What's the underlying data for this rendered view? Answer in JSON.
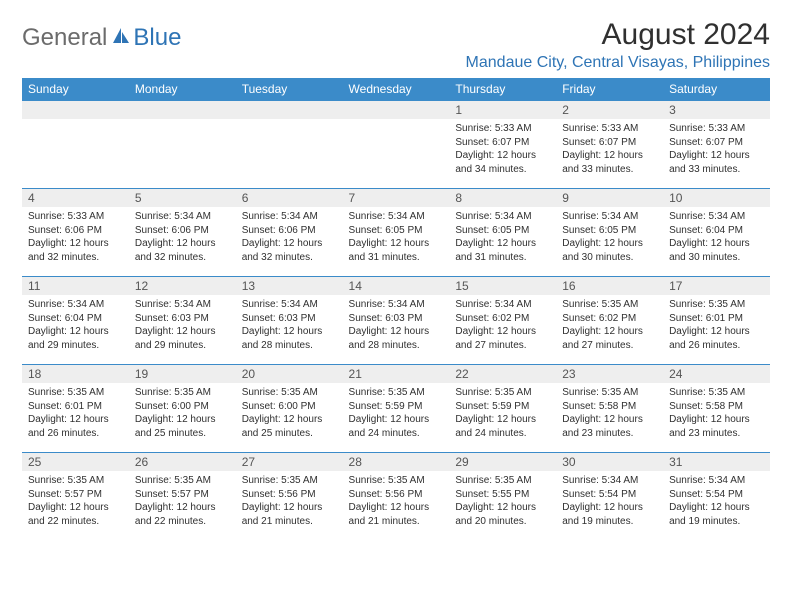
{
  "logo": {
    "general": "General",
    "blue": "Blue"
  },
  "title": "August 2024",
  "location": "Mandaue City, Central Visayas, Philippines",
  "colors": {
    "header_bg": "#3b8bc9",
    "header_text": "#ffffff",
    "daynum_bg": "#eeeeee",
    "accent": "#2e74b5",
    "text": "#303030"
  },
  "day_headers": [
    "Sunday",
    "Monday",
    "Tuesday",
    "Wednesday",
    "Thursday",
    "Friday",
    "Saturday"
  ],
  "weeks": [
    [
      null,
      null,
      null,
      null,
      {
        "n": "1",
        "sr": "5:33 AM",
        "ss": "6:07 PM",
        "dl": "12 hours and 34 minutes."
      },
      {
        "n": "2",
        "sr": "5:33 AM",
        "ss": "6:07 PM",
        "dl": "12 hours and 33 minutes."
      },
      {
        "n": "3",
        "sr": "5:33 AM",
        "ss": "6:07 PM",
        "dl": "12 hours and 33 minutes."
      }
    ],
    [
      {
        "n": "4",
        "sr": "5:33 AM",
        "ss": "6:06 PM",
        "dl": "12 hours and 32 minutes."
      },
      {
        "n": "5",
        "sr": "5:34 AM",
        "ss": "6:06 PM",
        "dl": "12 hours and 32 minutes."
      },
      {
        "n": "6",
        "sr": "5:34 AM",
        "ss": "6:06 PM",
        "dl": "12 hours and 32 minutes."
      },
      {
        "n": "7",
        "sr": "5:34 AM",
        "ss": "6:05 PM",
        "dl": "12 hours and 31 minutes."
      },
      {
        "n": "8",
        "sr": "5:34 AM",
        "ss": "6:05 PM",
        "dl": "12 hours and 31 minutes."
      },
      {
        "n": "9",
        "sr": "5:34 AM",
        "ss": "6:05 PM",
        "dl": "12 hours and 30 minutes."
      },
      {
        "n": "10",
        "sr": "5:34 AM",
        "ss": "6:04 PM",
        "dl": "12 hours and 30 minutes."
      }
    ],
    [
      {
        "n": "11",
        "sr": "5:34 AM",
        "ss": "6:04 PM",
        "dl": "12 hours and 29 minutes."
      },
      {
        "n": "12",
        "sr": "5:34 AM",
        "ss": "6:03 PM",
        "dl": "12 hours and 29 minutes."
      },
      {
        "n": "13",
        "sr": "5:34 AM",
        "ss": "6:03 PM",
        "dl": "12 hours and 28 minutes."
      },
      {
        "n": "14",
        "sr": "5:34 AM",
        "ss": "6:03 PM",
        "dl": "12 hours and 28 minutes."
      },
      {
        "n": "15",
        "sr": "5:34 AM",
        "ss": "6:02 PM",
        "dl": "12 hours and 27 minutes."
      },
      {
        "n": "16",
        "sr": "5:35 AM",
        "ss": "6:02 PM",
        "dl": "12 hours and 27 minutes."
      },
      {
        "n": "17",
        "sr": "5:35 AM",
        "ss": "6:01 PM",
        "dl": "12 hours and 26 minutes."
      }
    ],
    [
      {
        "n": "18",
        "sr": "5:35 AM",
        "ss": "6:01 PM",
        "dl": "12 hours and 26 minutes."
      },
      {
        "n": "19",
        "sr": "5:35 AM",
        "ss": "6:00 PM",
        "dl": "12 hours and 25 minutes."
      },
      {
        "n": "20",
        "sr": "5:35 AM",
        "ss": "6:00 PM",
        "dl": "12 hours and 25 minutes."
      },
      {
        "n": "21",
        "sr": "5:35 AM",
        "ss": "5:59 PM",
        "dl": "12 hours and 24 minutes."
      },
      {
        "n": "22",
        "sr": "5:35 AM",
        "ss": "5:59 PM",
        "dl": "12 hours and 24 minutes."
      },
      {
        "n": "23",
        "sr": "5:35 AM",
        "ss": "5:58 PM",
        "dl": "12 hours and 23 minutes."
      },
      {
        "n": "24",
        "sr": "5:35 AM",
        "ss": "5:58 PM",
        "dl": "12 hours and 23 minutes."
      }
    ],
    [
      {
        "n": "25",
        "sr": "5:35 AM",
        "ss": "5:57 PM",
        "dl": "12 hours and 22 minutes."
      },
      {
        "n": "26",
        "sr": "5:35 AM",
        "ss": "5:57 PM",
        "dl": "12 hours and 22 minutes."
      },
      {
        "n": "27",
        "sr": "5:35 AM",
        "ss": "5:56 PM",
        "dl": "12 hours and 21 minutes."
      },
      {
        "n": "28",
        "sr": "5:35 AM",
        "ss": "5:56 PM",
        "dl": "12 hours and 21 minutes."
      },
      {
        "n": "29",
        "sr": "5:35 AM",
        "ss": "5:55 PM",
        "dl": "12 hours and 20 minutes."
      },
      {
        "n": "30",
        "sr": "5:34 AM",
        "ss": "5:54 PM",
        "dl": "12 hours and 19 minutes."
      },
      {
        "n": "31",
        "sr": "5:34 AM",
        "ss": "5:54 PM",
        "dl": "12 hours and 19 minutes."
      }
    ]
  ],
  "labels": {
    "sunrise": "Sunrise:",
    "sunset": "Sunset:",
    "daylight": "Daylight:"
  }
}
